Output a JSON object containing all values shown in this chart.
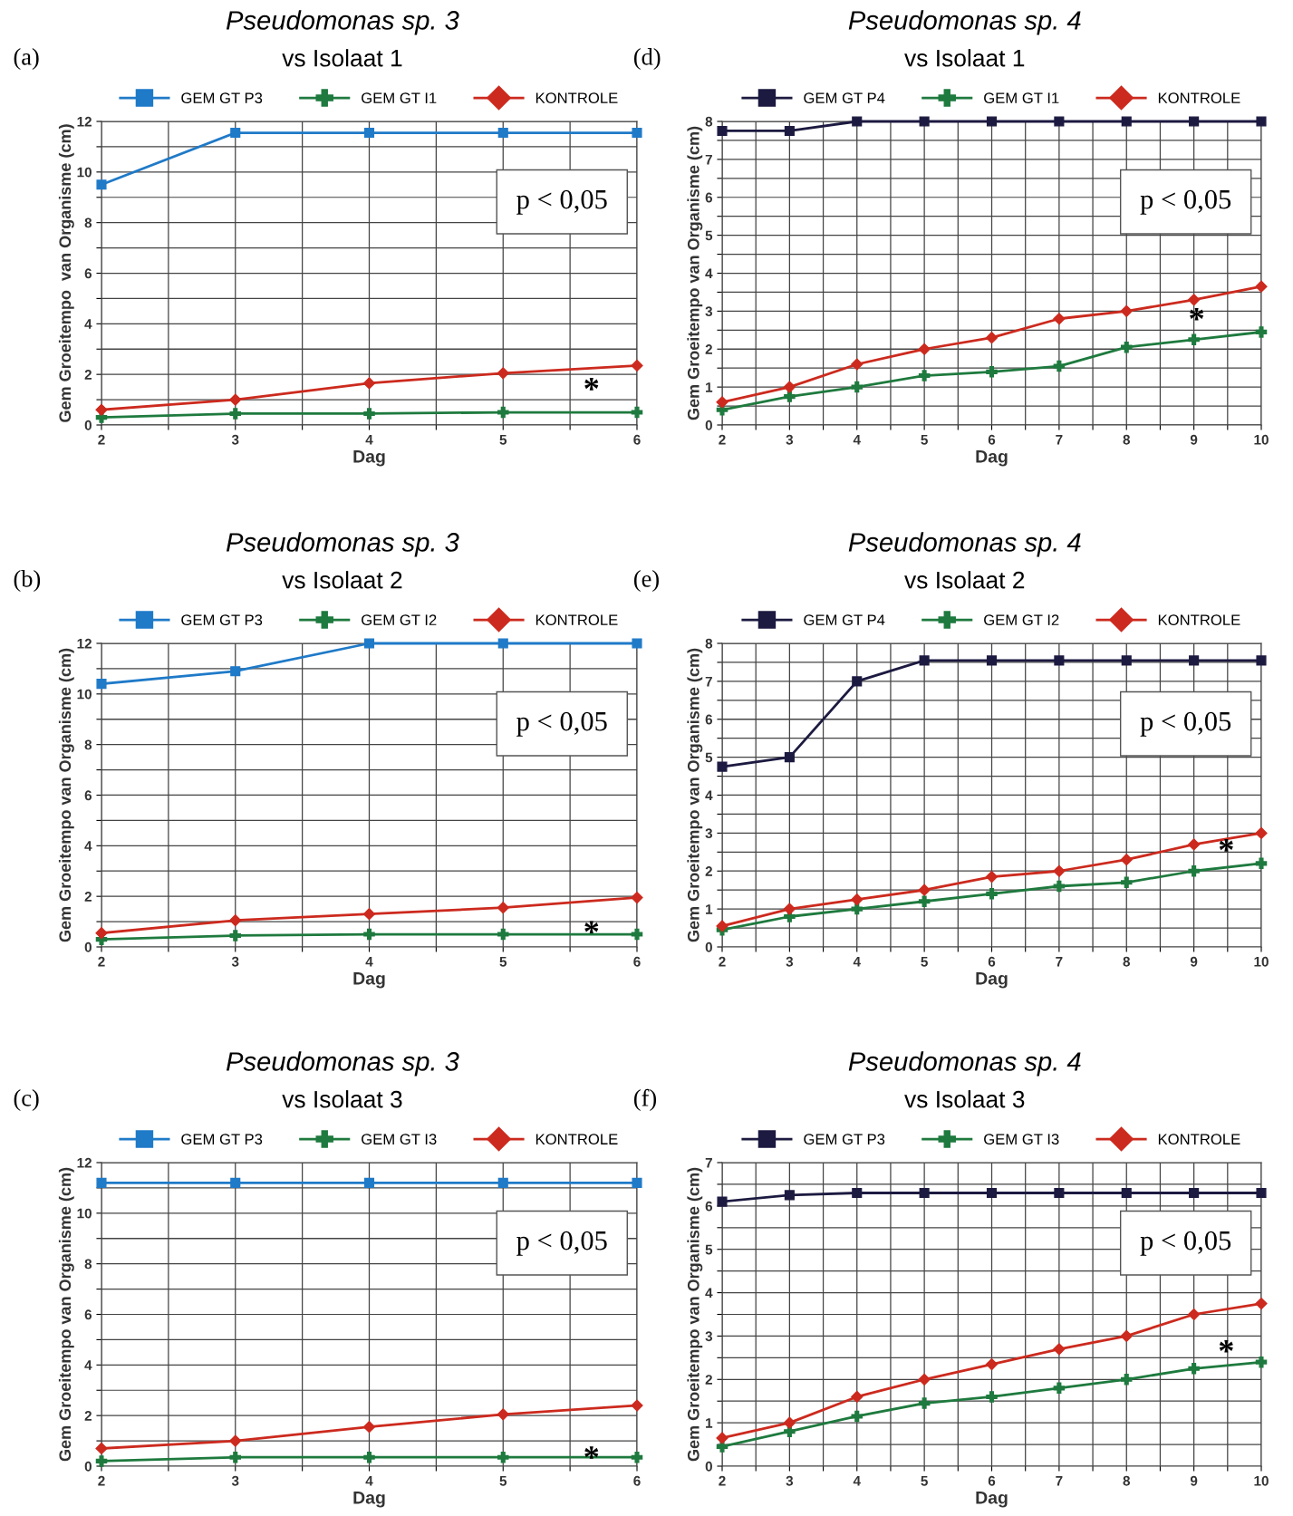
{
  "chart_data": [
    {
      "type": "line",
      "title": "Pseudomonas sp. 3",
      "subtitle": "vs Isolaat 1",
      "xlabel": "Dag",
      "ylabel": "Gem Groeitempo  van Organisme (cm)",
      "x": [
        2,
        3,
        4,
        5,
        6
      ],
      "xlim": [
        2,
        6
      ],
      "xticks": [
        2,
        {
          "value": 2.5,
          "label": null
        },
        3,
        {
          "value": 3.5,
          "label": null
        },
        4,
        {
          "value": 4.5,
          "label": null
        },
        5,
        {
          "value": 5.5,
          "label": null
        },
        6
      ],
      "ylim": [
        0,
        12
      ],
      "yticks": [
        0,
        {
          "value": 1,
          "label": null
        },
        2,
        {
          "value": 3,
          "label": null
        },
        4,
        {
          "value": 5,
          "label": null
        },
        6,
        {
          "value": 7,
          "label": null
        },
        8,
        {
          "value": 9,
          "label": null
        },
        10,
        {
          "value": 11,
          "label": null
        },
        12
      ],
      "grid": true,
      "legend": "top",
      "line_style": "solid",
      "series": [
        {
          "name": "GEM GT P3",
          "color": "#1f7ac8",
          "marker": "square",
          "values": [
            9.5,
            11.55,
            11.55,
            11.55,
            11.55
          ]
        },
        {
          "name": "GEM GT I1",
          "color": "#1e7a3e",
          "marker": "cross",
          "values": [
            0.3,
            0.45,
            0.45,
            0.5,
            0.5
          ]
        },
        {
          "name": "KONTROLE",
          "color": "#cc2a1e",
          "marker": "diamond",
          "values": [
            0.6,
            1.0,
            1.65,
            2.05,
            2.35
          ]
        }
      ],
      "annotations": [
        "(a)",
        "p < 0,05",
        "*"
      ]
    },
    {
      "type": "line",
      "title": "Pseudomonas sp. 4",
      "subtitle": "vs Isolaat 1",
      "xlabel": "Dag",
      "ylabel": "Gem Groeitempo van Organisme (cm)",
      "x": [
        2,
        3,
        4,
        5,
        6,
        7,
        8,
        9,
        10
      ],
      "xlim": [
        2,
        10
      ],
      "xticks": [
        2,
        {
          "value": 2.5,
          "label": null
        },
        3,
        {
          "value": 3.5,
          "label": null
        },
        4,
        {
          "value": 4.5,
          "label": null
        },
        5,
        {
          "value": 5.5,
          "label": null
        },
        6,
        {
          "value": 6.5,
          "label": null
        },
        7,
        {
          "value": 7.5,
          "label": null
        },
        8,
        {
          "value": 8.5,
          "label": null
        },
        9,
        {
          "value": 9.5,
          "label": null
        },
        10
      ],
      "ylim": [
        0,
        8
      ],
      "yticks": [
        0,
        {
          "value": 0.5,
          "label": null
        },
        1,
        {
          "value": 1.5,
          "label": null
        },
        2,
        {
          "value": 2.5,
          "label": null
        },
        3,
        {
          "value": 3.5,
          "label": null
        },
        4,
        {
          "value": 4.5,
          "label": null
        },
        5,
        {
          "value": 5.5,
          "label": null
        },
        6,
        {
          "value": 6.5,
          "label": null
        },
        7,
        {
          "value": 7.5,
          "label": null
        },
        8
      ],
      "grid": true,
      "legend": "top",
      "line_style": "solid",
      "series": [
        {
          "name": "GEM GT P4",
          "color": "#1c1a40",
          "marker": "square",
          "values": [
            7.75,
            7.75,
            8,
            8,
            8,
            8,
            8,
            8,
            8
          ]
        },
        {
          "name": "GEM GT I1",
          "color": "#1e7a3e",
          "marker": "cross",
          "values": [
            0.4,
            0.75,
            1.0,
            1.3,
            1.4,
            1.55,
            2.05,
            2.25,
            2.45
          ]
        },
        {
          "name": "KONTROLE",
          "color": "#cc2a1e",
          "marker": "diamond",
          "values": [
            0.6,
            1.0,
            1.6,
            2.0,
            2.3,
            2.8,
            3.0,
            3.3,
            3.65
          ]
        }
      ],
      "annotations": [
        "(d)",
        "p < 0,05",
        "*"
      ]
    },
    {
      "type": "line",
      "title": "Pseudomonas sp. 3",
      "subtitle": "vs Isolaat 2",
      "xlabel": "Dag",
      "ylabel": "Gem Groeitempo van Organisme (cm)",
      "x": [
        2,
        3,
        4,
        5,
        6
      ],
      "xlim": [
        2,
        6
      ],
      "xticks": [
        2,
        {
          "value": 2.5,
          "label": null
        },
        3,
        {
          "value": 3.5,
          "label": null
        },
        4,
        {
          "value": 4.5,
          "label": null
        },
        5,
        {
          "value": 5.5,
          "label": null
        },
        6
      ],
      "ylim": [
        0,
        12
      ],
      "yticks": [
        0,
        {
          "value": 1,
          "label": null
        },
        2,
        {
          "value": 3,
          "label": null
        },
        4,
        {
          "value": 5,
          "label": null
        },
        6,
        {
          "value": 7,
          "label": null
        },
        8,
        {
          "value": 9,
          "label": null
        },
        10,
        {
          "value": 11,
          "label": null
        },
        12
      ],
      "grid": true,
      "legend": "top",
      "line_style": "solid",
      "series": [
        {
          "name": "GEM GT P3",
          "color": "#1f7ac8",
          "marker": "square",
          "values": [
            10.4,
            10.9,
            12,
            12,
            12
          ]
        },
        {
          "name": "GEM GT I2",
          "color": "#1e7a3e",
          "marker": "cross",
          "values": [
            0.3,
            0.45,
            0.5,
            0.5,
            0.5
          ]
        },
        {
          "name": "KONTROLE",
          "color": "#cc2a1e",
          "marker": "diamond",
          "values": [
            0.55,
            1.05,
            1.3,
            1.55,
            1.95
          ]
        }
      ],
      "annotations": [
        "(b)",
        "p < 0,05",
        "*"
      ]
    },
    {
      "type": "line",
      "title": "Pseudomonas sp. 4",
      "subtitle": "vs Isolaat 2",
      "xlabel": "Dag",
      "ylabel": "Gem Groeitempo van Organisme (cm)",
      "x": [
        2,
        3,
        4,
        5,
        6,
        7,
        8,
        9,
        10
      ],
      "xlim": [
        2,
        10
      ],
      "xticks": [
        2,
        {
          "value": 2.5,
          "label": null
        },
        3,
        {
          "value": 3.5,
          "label": null
        },
        4,
        {
          "value": 4.5,
          "label": null
        },
        5,
        {
          "value": 5.5,
          "label": null
        },
        6,
        {
          "value": 6.5,
          "label": null
        },
        7,
        {
          "value": 7.5,
          "label": null
        },
        8,
        {
          "value": 8.5,
          "label": null
        },
        9,
        {
          "value": 9.5,
          "label": null
        },
        10
      ],
      "ylim": [
        0,
        8
      ],
      "yticks": [
        0,
        {
          "value": 0.5,
          "label": null
        },
        1,
        {
          "value": 1.5,
          "label": null
        },
        2,
        {
          "value": 2.5,
          "label": null
        },
        3,
        {
          "value": 3.5,
          "label": null
        },
        4,
        {
          "value": 4.5,
          "label": null
        },
        5,
        {
          "value": 5.5,
          "label": null
        },
        6,
        {
          "value": 6.5,
          "label": null
        },
        7,
        {
          "value": 7.5,
          "label": null
        },
        8
      ],
      "grid": true,
      "legend": "top",
      "line_style": "solid",
      "series": [
        {
          "name": "GEM GT P4",
          "color": "#1c1a40",
          "marker": "square",
          "values": [
            4.75,
            5.0,
            7.0,
            7.55,
            7.55,
            7.55,
            7.55,
            7.55,
            7.55
          ]
        },
        {
          "name": "GEM GT I2",
          "color": "#1e7a3e",
          "marker": "cross",
          "values": [
            0.45,
            0.8,
            1.0,
            1.2,
            1.4,
            1.6,
            1.7,
            2.0,
            2.2
          ]
        },
        {
          "name": "KONTROLE",
          "color": "#cc2a1e",
          "marker": "diamond",
          "values": [
            0.55,
            1.0,
            1.25,
            1.5,
            1.85,
            2.0,
            2.3,
            2.7,
            3.0
          ]
        }
      ],
      "annotations": [
        "(e)",
        "p < 0,05",
        "*"
      ]
    },
    {
      "type": "line",
      "title": "Pseudomonas sp. 3",
      "subtitle": "vs Isolaat 3",
      "xlabel": "Dag",
      "ylabel": "Gem Groeitempo van Organisme (cm)",
      "x": [
        2,
        3,
        4,
        5,
        6
      ],
      "xlim": [
        2,
        6
      ],
      "xticks": [
        2,
        {
          "value": 2.5,
          "label": null
        },
        3,
        {
          "value": 3.5,
          "label": null
        },
        4,
        {
          "value": 4.5,
          "label": null
        },
        5,
        {
          "value": 5.5,
          "label": null
        },
        6
      ],
      "ylim": [
        0,
        12
      ],
      "yticks": [
        0,
        {
          "value": 1,
          "label": null
        },
        2,
        {
          "value": 3,
          "label": null
        },
        4,
        {
          "value": 5,
          "label": null
        },
        6,
        {
          "value": 7,
          "label": null
        },
        8,
        {
          "value": 9,
          "label": null
        },
        10,
        {
          "value": 11,
          "label": null
        },
        12
      ],
      "grid": true,
      "legend": "top",
      "line_style": "solid",
      "series": [
        {
          "name": "GEM GT P3",
          "color": "#1f7ac8",
          "marker": "square",
          "values": [
            11.2,
            11.2,
            11.2,
            11.2,
            11.2
          ]
        },
        {
          "name": "GEM GT I3",
          "color": "#1e7a3e",
          "marker": "cross",
          "values": [
            0.2,
            0.35,
            0.35,
            0.35,
            0.35
          ]
        },
        {
          "name": "KONTROLE",
          "color": "#cc2a1e",
          "marker": "diamond",
          "values": [
            0.7,
            1.0,
            1.55,
            2.05,
            2.4
          ]
        }
      ],
      "annotations": [
        "(c)",
        "p < 0,05",
        "*"
      ]
    },
    {
      "type": "line",
      "title": "Pseudomonas sp. 4",
      "subtitle": "vs Isolaat 3",
      "xlabel": "Dag",
      "ylabel": "Gem Groeitempo van Organisme (cm)",
      "x": [
        2,
        3,
        4,
        5,
        6,
        7,
        8,
        9,
        10
      ],
      "xlim": [
        2,
        10
      ],
      "xticks": [
        2,
        {
          "value": 2.5,
          "label": null
        },
        3,
        {
          "value": 3.5,
          "label": null
        },
        4,
        {
          "value": 4.5,
          "label": null
        },
        5,
        {
          "value": 5.5,
          "label": null
        },
        6,
        {
          "value": 6.5,
          "label": null
        },
        7,
        {
          "value": 7.5,
          "label": null
        },
        8,
        {
          "value": 8.5,
          "label": null
        },
        9,
        {
          "value": 9.5,
          "label": null
        },
        10
      ],
      "ylim": [
        0,
        7
      ],
      "yticks": [
        0,
        {
          "value": 0.5,
          "label": null
        },
        1,
        {
          "value": 1.5,
          "label": null
        },
        2,
        {
          "value": 2.5,
          "label": null
        },
        3,
        {
          "value": 3.5,
          "label": null
        },
        4,
        {
          "value": 4.5,
          "label": null
        },
        5,
        {
          "value": 5.5,
          "label": null
        },
        6,
        {
          "value": 6.5,
          "label": null
        },
        7
      ],
      "grid": true,
      "legend": "top",
      "line_style": "solid",
      "series": [
        {
          "name": "GEM GT P3",
          "color": "#1c1a40",
          "marker": "square",
          "values": [
            6.1,
            6.25,
            6.3,
            6.3,
            6.3,
            6.3,
            6.3,
            6.3,
            6.3
          ]
        },
        {
          "name": "GEM GT I3",
          "color": "#1e7a3e",
          "marker": "cross",
          "values": [
            0.45,
            0.8,
            1.15,
            1.45,
            1.6,
            1.8,
            2.0,
            2.25,
            2.4
          ]
        },
        {
          "name": "KONTROLE",
          "color": "#cc2a1e",
          "marker": "diamond",
          "values": [
            0.65,
            1.0,
            1.6,
            2.0,
            2.35,
            2.7,
            3.0,
            3.5,
            3.75
          ]
        }
      ],
      "annotations": [
        "(f)",
        "p < 0,05",
        "*"
      ]
    }
  ]
}
